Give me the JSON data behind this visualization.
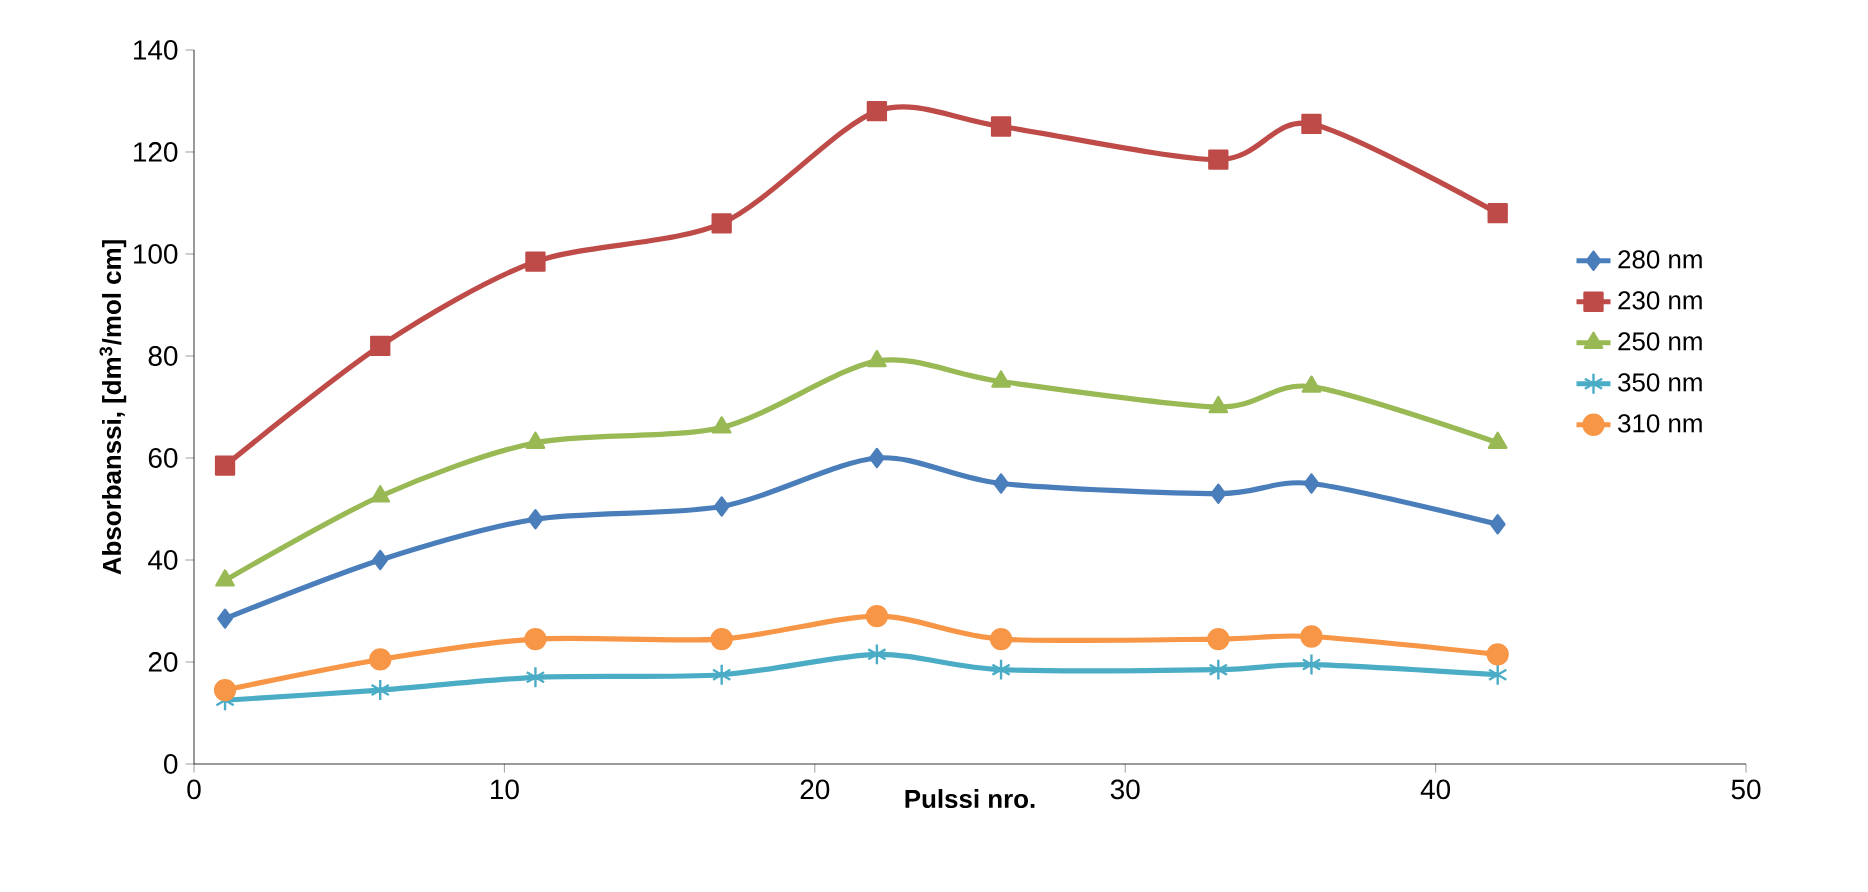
{
  "chart_data": {
    "type": "line",
    "xlabel": "Pulssi nro.",
    "ylabel": "Absorbanssi, [dm$^{3}$/mol cm]",
    "x": [
      1,
      6,
      11,
      17,
      22,
      26,
      33,
      36,
      42
    ],
    "xlim": [
      0,
      50
    ],
    "xticks": [
      0,
      10,
      20,
      30,
      40,
      50
    ],
    "ylim": [
      0,
      140
    ],
    "yticks": [
      0,
      20,
      40,
      60,
      80,
      100,
      120,
      140
    ],
    "grid": false,
    "legend": "right",
    "line_style": "solid",
    "series": [
      {
        "name": "280 nm",
        "color": "#4a7ebb",
        "marker": "diamond",
        "values": [
          28.5,
          40,
          48,
          50.5,
          60,
          55,
          53,
          55,
          47
        ]
      },
      {
        "name": "230 nm",
        "color": "#be4b48",
        "marker": "square",
        "values": [
          58.5,
          82,
          98.5,
          106,
          128,
          125,
          118.5,
          125.5,
          108
        ]
      },
      {
        "name": "250 nm",
        "color": "#98b954",
        "marker": "triangle",
        "values": [
          36,
          52.5,
          63,
          66,
          79,
          75,
          70,
          74,
          63
        ]
      },
      {
        "name": "350 nm",
        "color": "#4bacc6",
        "marker": "cross",
        "values": [
          12.5,
          14.5,
          17,
          17.5,
          21.5,
          18.5,
          18.5,
          19.5,
          17.5
        ]
      },
      {
        "name": "310 nm",
        "color": "#f79646",
        "marker": "circle",
        "values": [
          14.5,
          20.5,
          24.5,
          24.5,
          29,
          24.5,
          24.5,
          25,
          21.5
        ]
      }
    ]
  }
}
